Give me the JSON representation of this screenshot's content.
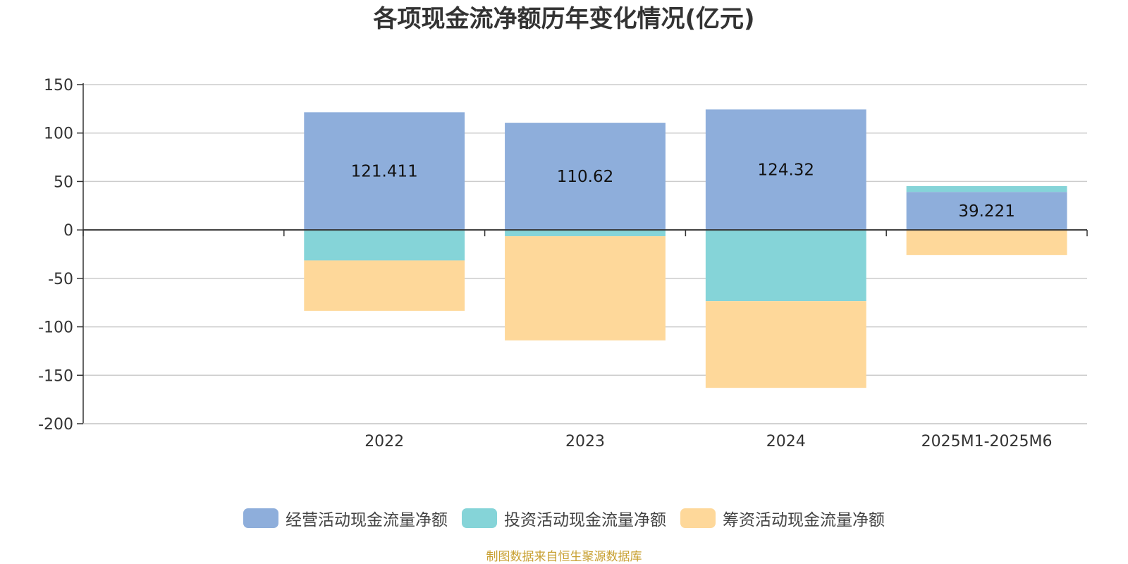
{
  "chart_data": {
    "type": "bar",
    "stacked": true,
    "title": "各项现金流净额历年变化情况(亿元)",
    "categories": [
      "",
      "2022",
      "2023",
      "2024",
      "2025M1-2025M6"
    ],
    "ylim": [
      -200,
      150
    ],
    "yticks": [
      150,
      100,
      50,
      0,
      -50,
      -100,
      -150,
      -200
    ],
    "grid": true,
    "legend_position": "bottom",
    "series": [
      {
        "name": "经营活动现金流量净额",
        "color": "#8eaedb",
        "values": [
          null,
          121.411,
          110.62,
          124.32,
          39.221
        ],
        "labels": [
          "",
          "121.411",
          "110.62",
          "124.32",
          "39.221"
        ]
      },
      {
        "name": "投资活动现金流量净额",
        "color": "#85d4d8",
        "values": [
          null,
          -31.5,
          -6.5,
          -73.5,
          6.0
        ]
      },
      {
        "name": "筹资活动现金流量净额",
        "color": "#fed89a",
        "values": [
          null,
          -52.0,
          -107.5,
          -89.5,
          -26.0
        ]
      }
    ]
  },
  "footer": {
    "source": "制图数据来自恒生聚源数据库"
  }
}
